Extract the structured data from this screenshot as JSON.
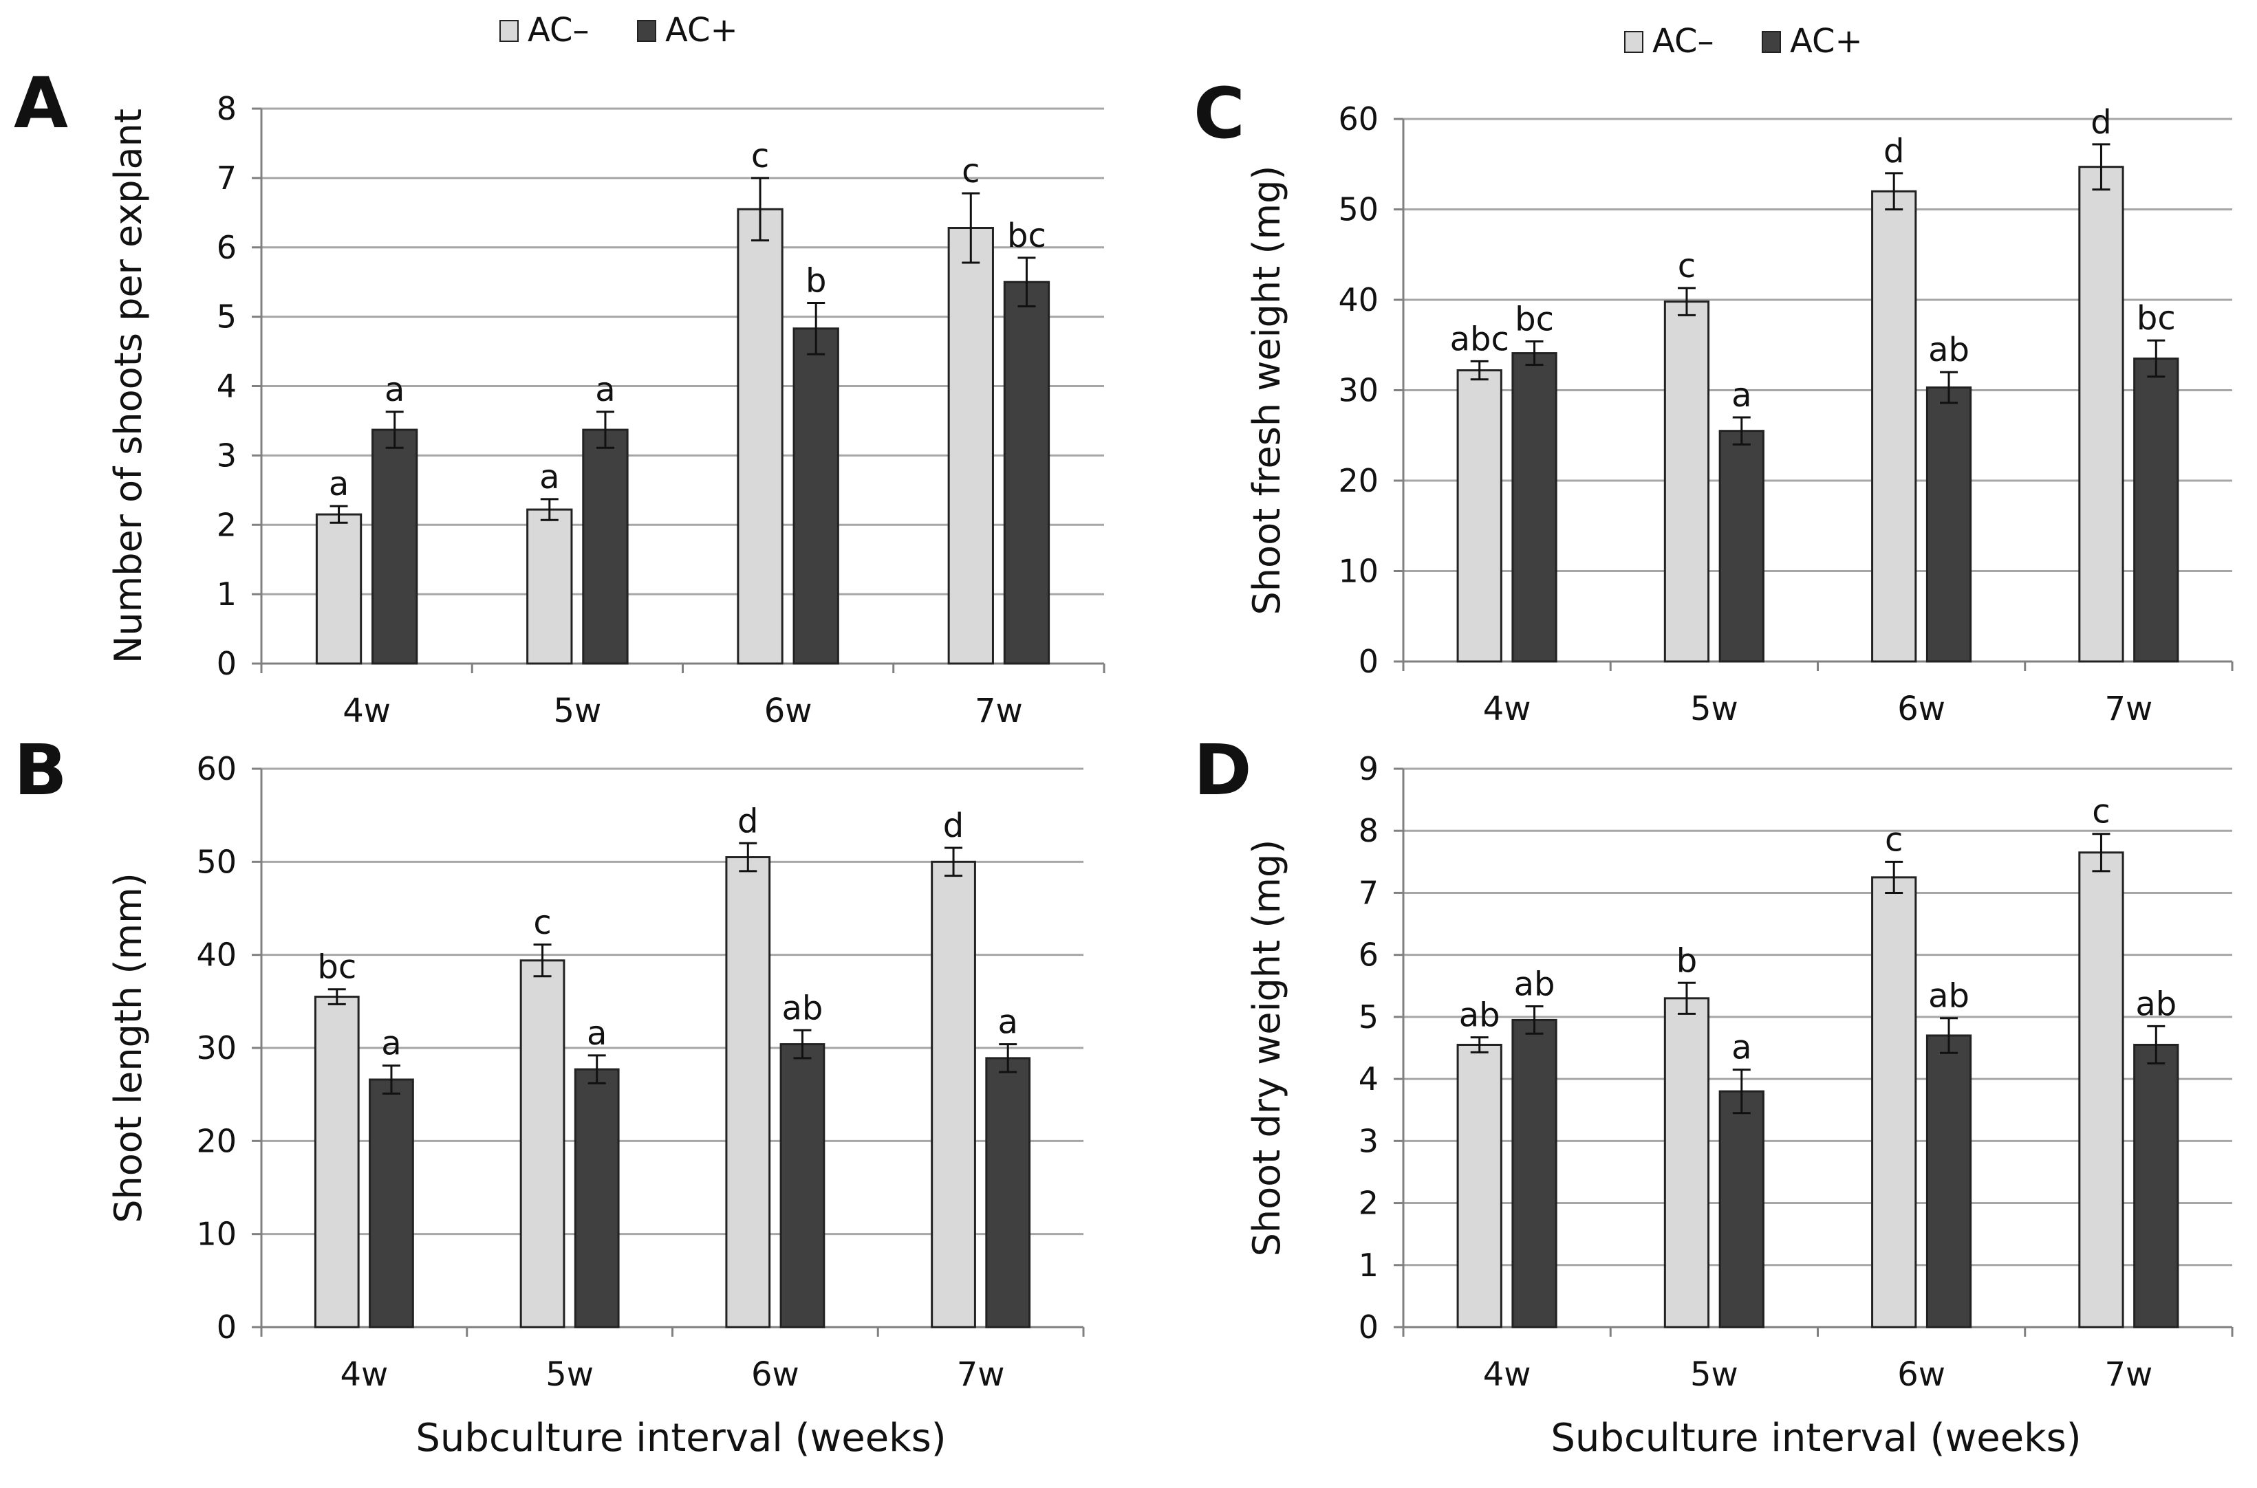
{
  "colors": {
    "ac_minus": "#d9d9d9",
    "ac_plus": "#404040",
    "grid": "#a6a6a6",
    "axis": "#808080",
    "outline": "#222222"
  },
  "chart_data": [
    {
      "panel": "A",
      "type": "bar",
      "ylabel": "Number of shoots per explant",
      "xlabel": "",
      "categories": [
        "4w",
        "5w",
        "6w",
        "7w"
      ],
      "ylim": [
        0,
        8
      ],
      "yticks": [
        0,
        1,
        2,
        3,
        4,
        5,
        6,
        7,
        8
      ],
      "legend": [
        "AC–",
        "AC+"
      ],
      "series": [
        {
          "name": "AC–",
          "values": [
            2.15,
            2.22,
            6.55,
            6.28
          ],
          "errors": [
            0.12,
            0.15,
            0.45,
            0.5
          ],
          "letters": [
            "a",
            "a",
            "c",
            "c"
          ]
        },
        {
          "name": "AC+",
          "values": [
            3.37,
            3.37,
            4.83,
            5.5
          ],
          "errors": [
            0.26,
            0.26,
            0.37,
            0.35
          ],
          "letters": [
            "a",
            "a",
            "b",
            "bc"
          ]
        }
      ]
    },
    {
      "panel": "B",
      "type": "bar",
      "ylabel": "Shoot length (mm)",
      "xlabel": "Subculture interval (weeks)",
      "categories": [
        "4w",
        "5w",
        "6w",
        "7w"
      ],
      "ylim": [
        0,
        60
      ],
      "yticks": [
        0,
        10,
        20,
        30,
        40,
        50,
        60
      ],
      "series": [
        {
          "name": "AC–",
          "values": [
            35.5,
            39.4,
            50.5,
            50.0
          ],
          "errors": [
            0.8,
            1.7,
            1.5,
            1.5
          ],
          "letters": [
            "bc",
            "c",
            "d",
            "d"
          ]
        },
        {
          "name": "AC+",
          "values": [
            26.6,
            27.7,
            30.4,
            28.9
          ],
          "errors": [
            1.5,
            1.5,
            1.5,
            1.5
          ],
          "letters": [
            "a",
            "a",
            "ab",
            "a"
          ]
        }
      ]
    },
    {
      "panel": "C",
      "type": "bar",
      "ylabel": "Shoot fresh weight (mg)",
      "xlabel": "",
      "categories": [
        "4w",
        "5w",
        "6w",
        "7w"
      ],
      "ylim": [
        0,
        60
      ],
      "yticks": [
        0,
        10,
        20,
        30,
        40,
        50,
        60
      ],
      "legend": [
        "AC–",
        "AC+"
      ],
      "series": [
        {
          "name": "AC–",
          "values": [
            32.2,
            39.8,
            52.0,
            54.7
          ],
          "errors": [
            1.0,
            1.5,
            2.0,
            2.5
          ],
          "letters": [
            "abc",
            "c",
            "d",
            "d"
          ]
        },
        {
          "name": "AC+",
          "values": [
            34.1,
            25.5,
            30.3,
            33.5
          ],
          "errors": [
            1.3,
            1.5,
            1.7,
            2.0
          ],
          "letters": [
            "bc",
            "a",
            "ab",
            "bc"
          ]
        }
      ]
    },
    {
      "panel": "D",
      "type": "bar",
      "ylabel": "Shoot dry weight (mg)",
      "xlabel": "Subculture interval (weeks)",
      "categories": [
        "4w",
        "5w",
        "6w",
        "7w"
      ],
      "ylim": [
        0,
        9
      ],
      "yticks": [
        0,
        1,
        2,
        3,
        4,
        5,
        6,
        7,
        8,
        9
      ],
      "series": [
        {
          "name": "AC–",
          "values": [
            4.55,
            5.3,
            7.25,
            7.65
          ],
          "errors": [
            0.12,
            0.25,
            0.25,
            0.3
          ],
          "letters": [
            "ab",
            "b",
            "c",
            "c"
          ]
        },
        {
          "name": "AC+",
          "values": [
            4.95,
            3.8,
            4.7,
            4.55
          ],
          "errors": [
            0.22,
            0.35,
            0.28,
            0.3
          ],
          "letters": [
            "ab",
            "a",
            "ab",
            "ab"
          ]
        }
      ]
    }
  ]
}
